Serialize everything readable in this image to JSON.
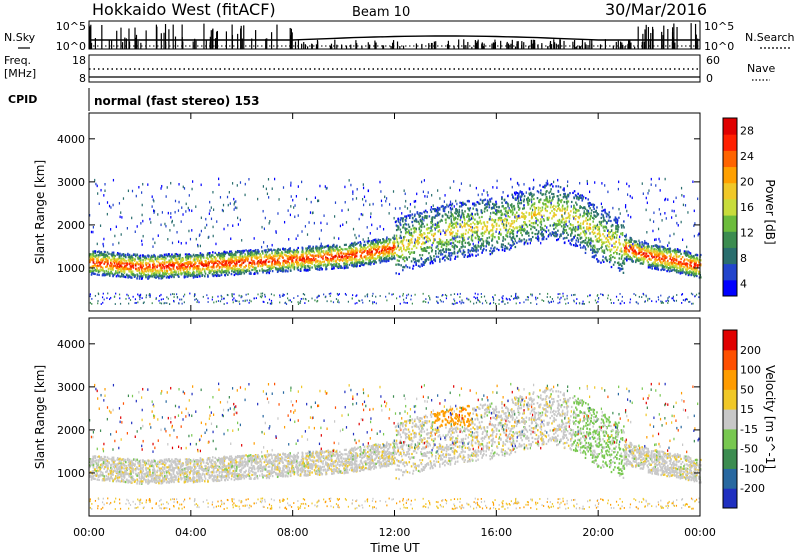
{
  "header": {
    "station": "Hokkaido West (fitACF)",
    "beam": "Beam 10",
    "date": "30/Mar/2016"
  },
  "panels": {
    "noise": {
      "left_label": "N.Sky",
      "right_label": "N.Search",
      "left_ticks": [
        "10^5",
        "10^0"
      ],
      "right_ticks": [
        "10^5",
        "10^0"
      ]
    },
    "freq": {
      "left_label_1": "Freq.",
      "left_label_2": "[MHz]",
      "right_label": "Nave",
      "left_ticks": [
        "18",
        "8"
      ],
      "right_ticks": [
        "60",
        "0"
      ]
    },
    "cpid": {
      "label": "CPID",
      "text": "normal (fast stereo) 153"
    }
  },
  "chart_data": [
    {
      "type": "heatmap",
      "name": "power",
      "ylabel": "Slant Range [km]",
      "ylim": [
        0,
        4600
      ],
      "y_ticks": [
        "1000",
        "2000",
        "3000",
        "4000"
      ],
      "xlim": [
        0,
        24
      ],
      "x_ticks": [
        "00:00",
        "04:00",
        "08:00",
        "12:00",
        "16:00",
        "20:00",
        "00:00"
      ],
      "colorbar": {
        "label": "Power [dB]",
        "ticks": [
          "4",
          "8",
          "12",
          "16",
          "20",
          "24",
          "28"
        ],
        "colors": [
          "#0000ff",
          "#2244cc",
          "#2a6e6e",
          "#3c8c50",
          "#6cbc3c",
          "#c8dc3c",
          "#f0c828",
          "#ffa000",
          "#ff6400",
          "#ff2000",
          "#e00000"
        ]
      },
      "scatter_band_center_km": [
        [
          0,
          1150
        ],
        [
          2,
          1050
        ],
        [
          4,
          1080
        ],
        [
          6,
          1150
        ],
        [
          8,
          1220
        ],
        [
          10,
          1300
        ],
        [
          11,
          1380
        ],
        [
          12,
          1500
        ],
        [
          13,
          1700
        ],
        [
          14,
          1850
        ],
        [
          15,
          1950
        ],
        [
          16,
          2000
        ],
        [
          17,
          2200
        ],
        [
          18,
          2350
        ],
        [
          19,
          2200
        ],
        [
          20,
          1800
        ],
        [
          21,
          1500
        ],
        [
          22,
          1300
        ],
        [
          23,
          1200
        ],
        [
          24,
          1050
        ]
      ]
    },
    {
      "type": "heatmap",
      "name": "velocity",
      "ylabel": "Slant Range [km]",
      "ylim": [
        0,
        4600
      ],
      "y_ticks": [
        "1000",
        "2000",
        "3000",
        "4000"
      ],
      "xlim": [
        0,
        24
      ],
      "x_ticks": [
        "00:00",
        "04:00",
        "08:00",
        "12:00",
        "16:00",
        "20:00",
        "00:00"
      ],
      "xlabel": "Time UT",
      "colorbar": {
        "label": "Velocity [m s^-1]",
        "ticks": [
          "200",
          "100",
          "50",
          "15",
          "-15",
          "-50",
          "-100",
          "-200"
        ],
        "colors": [
          "#2030c0",
          "#2868a0",
          "#3c8c50",
          "#78c850",
          "#c8c8c8",
          "#f0c828",
          "#ff9c00",
          "#ff5000",
          "#e00000"
        ]
      }
    }
  ]
}
